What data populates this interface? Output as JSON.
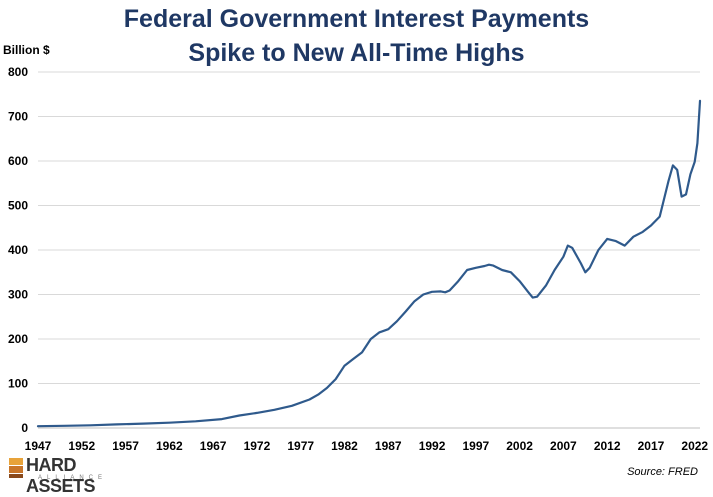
{
  "chart_data": {
    "type": "line",
    "title": "Federal Government Interest Payments Spike to New All-Time Highs",
    "title_lines": [
      "Federal Government Interest Payments",
      "Spike to New All-Time Highs"
    ],
    "ylabel": "Billion $",
    "xlabel": "",
    "source": "Source: FRED",
    "ylim": [
      0,
      800
    ],
    "xlim": [
      1947,
      2022.6
    ],
    "grid": true,
    "yticks": [
      0,
      100,
      200,
      300,
      400,
      500,
      600,
      700,
      800
    ],
    "xticks": [
      1947,
      1952,
      1957,
      1962,
      1967,
      1972,
      1977,
      1982,
      1987,
      1992,
      1997,
      2002,
      2007,
      2012,
      2017,
      2022
    ],
    "line_color": "#2f5a8c",
    "series": [
      {
        "name": "Federal Government Interest Payments",
        "x": [
          1947,
          1950,
          1953,
          1956,
          1959,
          1962,
          1965,
          1968,
          1970,
          1972,
          1974,
          1976,
          1978,
          1979,
          1980,
          1981,
          1982,
          1983,
          1984,
          1985,
          1986,
          1987,
          1988,
          1989,
          1990,
          1991,
          1992,
          1993,
          1993.5,
          1994,
          1995,
          1996,
          1997,
          1998,
          1998.5,
          1999,
          2000,
          2001,
          2002,
          2003,
          2003.5,
          2004,
          2005,
          2006,
          2007,
          2007.5,
          2008,
          2009,
          2009.5,
          2010,
          2011,
          2012,
          2013,
          2014,
          2015,
          2016,
          2017,
          2018,
          2019,
          2019.5,
          2020,
          2020.5,
          2021,
          2021.5,
          2022,
          2022.3,
          2022.6
        ],
        "y": [
          4,
          5,
          6,
          8,
          10,
          12,
          15,
          20,
          28,
          34,
          41,
          50,
          64,
          75,
          90,
          110,
          140,
          155,
          170,
          200,
          215,
          222,
          240,
          262,
          285,
          300,
          306,
          307,
          305,
          309,
          330,
          355,
          360,
          364,
          367,
          365,
          355,
          350,
          330,
          305,
          293,
          295,
          320,
          355,
          385,
          410,
          405,
          370,
          350,
          360,
          400,
          425,
          420,
          410,
          430,
          440,
          455,
          475,
          555,
          590,
          580,
          520,
          525,
          570,
          598,
          640,
          735
        ]
      }
    ]
  },
  "logo": {
    "text": "HARD ASSETS",
    "subtext": "ALLIANCE"
  }
}
